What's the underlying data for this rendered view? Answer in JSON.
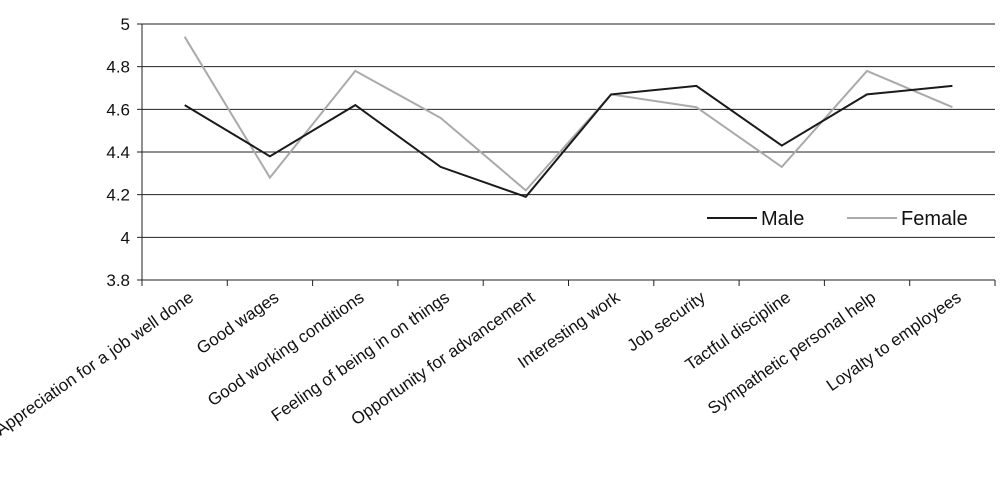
{
  "chart_data": {
    "type": "line",
    "categories": [
      "Appreciation for a job well done",
      "Good wages",
      "Good working conditions",
      "Feeling of being in on things",
      "Opportunity for advancement",
      "Interesting work",
      "Job security",
      "Tactful discipline",
      "Sympathetic personal help",
      "Loyalty to employees"
    ],
    "series": [
      {
        "name": "Male",
        "color": "#1a1a1a",
        "values": [
          4.62,
          4.38,
          4.62,
          4.33,
          4.19,
          4.67,
          4.71,
          4.43,
          4.67,
          4.71
        ]
      },
      {
        "name": "Female",
        "color": "#aaaaaa",
        "values": [
          4.94,
          4.28,
          4.78,
          4.56,
          4.22,
          4.67,
          4.61,
          4.33,
          4.78,
          4.61
        ]
      }
    ],
    "title": "",
    "xlabel": "",
    "ylabel": "",
    "ylim": [
      3.8,
      5
    ],
    "yticks": [
      "3.8",
      "4",
      "4.2",
      "4.4",
      "4.6",
      "4.8",
      "5"
    ],
    "grid": "horizontal",
    "legend_position": "right"
  }
}
